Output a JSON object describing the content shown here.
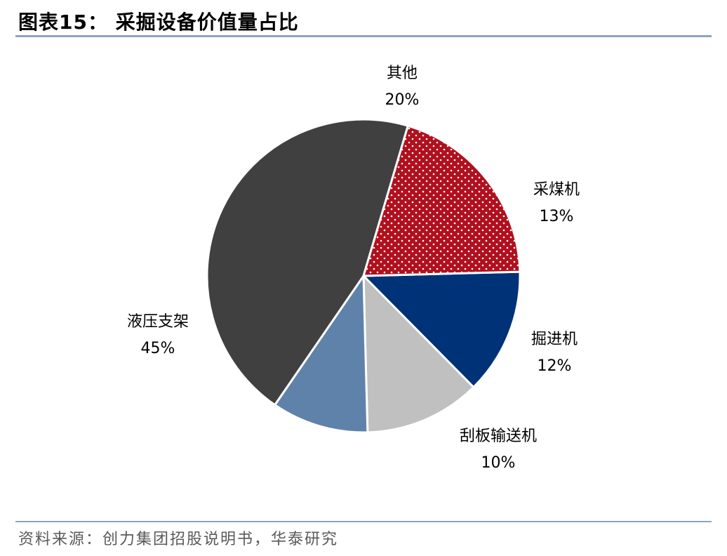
{
  "header": {
    "title": "图表15：  采掘设备价值量占比"
  },
  "footer": {
    "source": "资料来源：创力集团招股说明书，华泰研究"
  },
  "colors": {
    "rule": "#8ea3c0",
    "slice_edge": "#ffffff"
  },
  "chart_data": {
    "type": "pie",
    "title": "采掘设备价值量占比",
    "slices": [
      {
        "label": "采煤机",
        "value": 13,
        "display": "13%",
        "color": "#003278"
      },
      {
        "label": "掘进机",
        "value": 12,
        "display": "12%",
        "color": "#c0c0c0"
      },
      {
        "label": "刮板输送机",
        "value": 10,
        "display": "10%",
        "color": "#5f82aa"
      },
      {
        "label": "液压支架",
        "value": 45,
        "display": "45%",
        "color": "#404040"
      },
      {
        "label": "其他",
        "value": 20,
        "display": "20%",
        "color": "#b0101e",
        "pattern": "white-dots"
      }
    ],
    "start_direction": "right (slightly above horizontal), clockwise"
  }
}
